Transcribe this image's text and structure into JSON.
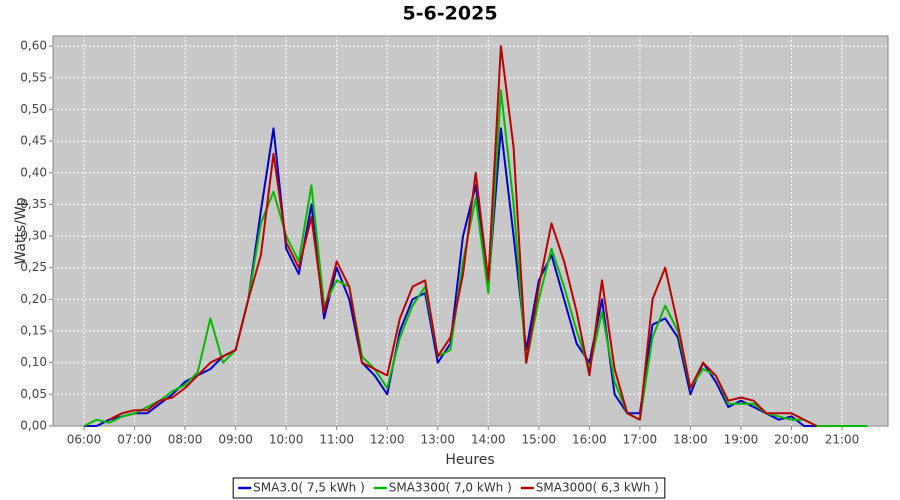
{
  "chart_data": {
    "type": "line",
    "title": "5-6-2025",
    "ylabel": "Watts/Wp",
    "xlabel": "Heures",
    "x": [
      6,
      6.25,
      6.5,
      6.75,
      7,
      7.25,
      7.5,
      7.75,
      8,
      8.25,
      8.5,
      8.75,
      9,
      9.25,
      9.5,
      9.75,
      10,
      10.25,
      10.5,
      10.75,
      11,
      11.25,
      11.5,
      11.75,
      12,
      12.25,
      12.5,
      12.75,
      13,
      13.25,
      13.5,
      13.75,
      14,
      14.25,
      14.5,
      14.75,
      15,
      15.25,
      15.5,
      15.75,
      16,
      16.25,
      16.5,
      16.75,
      17,
      17.25,
      17.5,
      17.75,
      18,
      18.25,
      18.5,
      18.75,
      19,
      19.25,
      19.5,
      19.75,
      20,
      20.25,
      20.5,
      20.75,
      21,
      21.25,
      21.5
    ],
    "series": [
      {
        "name": "SMA3.0( 7,5 kWh )",
        "color": "#0000cc",
        "values": [
          0,
          0,
          0.01,
          0.015,
          0.02,
          0.02,
          0.035,
          0.05,
          0.07,
          0.08,
          0.09,
          0.11,
          0.12,
          0.2,
          0.34,
          0.47,
          0.28,
          0.24,
          0.35,
          0.17,
          0.25,
          0.2,
          0.1,
          0.08,
          0.05,
          0.15,
          0.2,
          0.21,
          0.1,
          0.13,
          0.3,
          0.38,
          0.22,
          0.47,
          0.3,
          0.12,
          0.23,
          0.27,
          0.2,
          0.13,
          0.1,
          0.2,
          0.05,
          0.02,
          0.02,
          0.16,
          0.17,
          0.14,
          0.05,
          0.1,
          0.07,
          0.03,
          0.04,
          0.03,
          0.02,
          0.01,
          0.015,
          0,
          0,
          null,
          null,
          null,
          null
        ]
      },
      {
        "name": "SMA3300( 7,0 kWh )",
        "color": "#00bb00",
        "values": [
          0,
          0.01,
          0.005,
          0.015,
          0.02,
          0.03,
          0.04,
          0.055,
          0.065,
          0.085,
          0.17,
          0.1,
          0.12,
          0.2,
          0.32,
          0.37,
          0.3,
          0.26,
          0.38,
          0.19,
          0.23,
          0.22,
          0.11,
          0.09,
          0.06,
          0.14,
          0.19,
          0.22,
          0.11,
          0.12,
          0.26,
          0.36,
          0.21,
          0.53,
          0.35,
          0.1,
          0.2,
          0.28,
          0.22,
          0.15,
          0.09,
          0.18,
          0.07,
          0.02,
          0.01,
          0.14,
          0.19,
          0.15,
          0.06,
          0.09,
          0.08,
          0.035,
          0.035,
          0.035,
          0.02,
          0.015,
          0.01,
          0.01,
          0,
          0,
          0,
          0,
          0
        ]
      },
      {
        "name": "SMA3000( 6,3 kWh )",
        "color": "#bb0000",
        "values": [
          null,
          null,
          0.01,
          0.02,
          0.025,
          0.025,
          0.04,
          0.045,
          0.06,
          0.08,
          0.1,
          0.11,
          0.12,
          0.2,
          0.27,
          0.43,
          0.29,
          0.25,
          0.33,
          0.18,
          0.26,
          0.22,
          0.1,
          0.09,
          0.08,
          0.17,
          0.22,
          0.23,
          0.11,
          0.14,
          0.24,
          0.4,
          0.23,
          0.6,
          0.44,
          0.1,
          0.22,
          0.32,
          0.26,
          0.18,
          0.08,
          0.23,
          0.09,
          0.02,
          0.01,
          0.2,
          0.25,
          0.16,
          0.06,
          0.1,
          0.08,
          0.04,
          0.045,
          0.04,
          0.02,
          0.02,
          0.02,
          0.01,
          0,
          null,
          null,
          null,
          null
        ]
      }
    ],
    "xlim": [
      5.386,
      21.91
    ],
    "xticks": [
      {
        "value": 6,
        "label": "06:00"
      },
      {
        "value": 7,
        "label": "07:00"
      },
      {
        "value": 8,
        "label": "08:00"
      },
      {
        "value": 9,
        "label": "09:00"
      },
      {
        "value": 10,
        "label": "10:00"
      },
      {
        "value": 11,
        "label": "11:00"
      },
      {
        "value": 12,
        "label": "12:00"
      },
      {
        "value": 13,
        "label": "13:00"
      },
      {
        "value": 14,
        "label": "14:00"
      },
      {
        "value": 15,
        "label": "15:00"
      },
      {
        "value": 16,
        "label": "16:00"
      },
      {
        "value": 17,
        "label": "17:00"
      },
      {
        "value": 18,
        "label": "18:00"
      },
      {
        "value": 19,
        "label": "19:00"
      },
      {
        "value": 20,
        "label": "20:00"
      },
      {
        "value": 21,
        "label": "21:00"
      }
    ],
    "ylim": [
      0,
      0.616
    ],
    "yticks": [
      {
        "value": 0,
        "label": "0,00"
      },
      {
        "value": 0.05,
        "label": "0,05"
      },
      {
        "value": 0.1,
        "label": "0,10"
      },
      {
        "value": 0.15,
        "label": "0,15"
      },
      {
        "value": 0.2,
        "label": "0,20"
      },
      {
        "value": 0.25,
        "label": "0,25"
      },
      {
        "value": 0.3,
        "label": "0,30"
      },
      {
        "value": 0.35,
        "label": "0,35"
      },
      {
        "value": 0.4,
        "label": "0,40"
      },
      {
        "value": 0.45,
        "label": "0,45"
      },
      {
        "value": 0.5,
        "label": "0,50"
      },
      {
        "value": 0.55,
        "label": "0,55"
      },
      {
        "value": 0.6,
        "label": "0,60"
      }
    ],
    "grid": true,
    "legend": "bottom"
  }
}
